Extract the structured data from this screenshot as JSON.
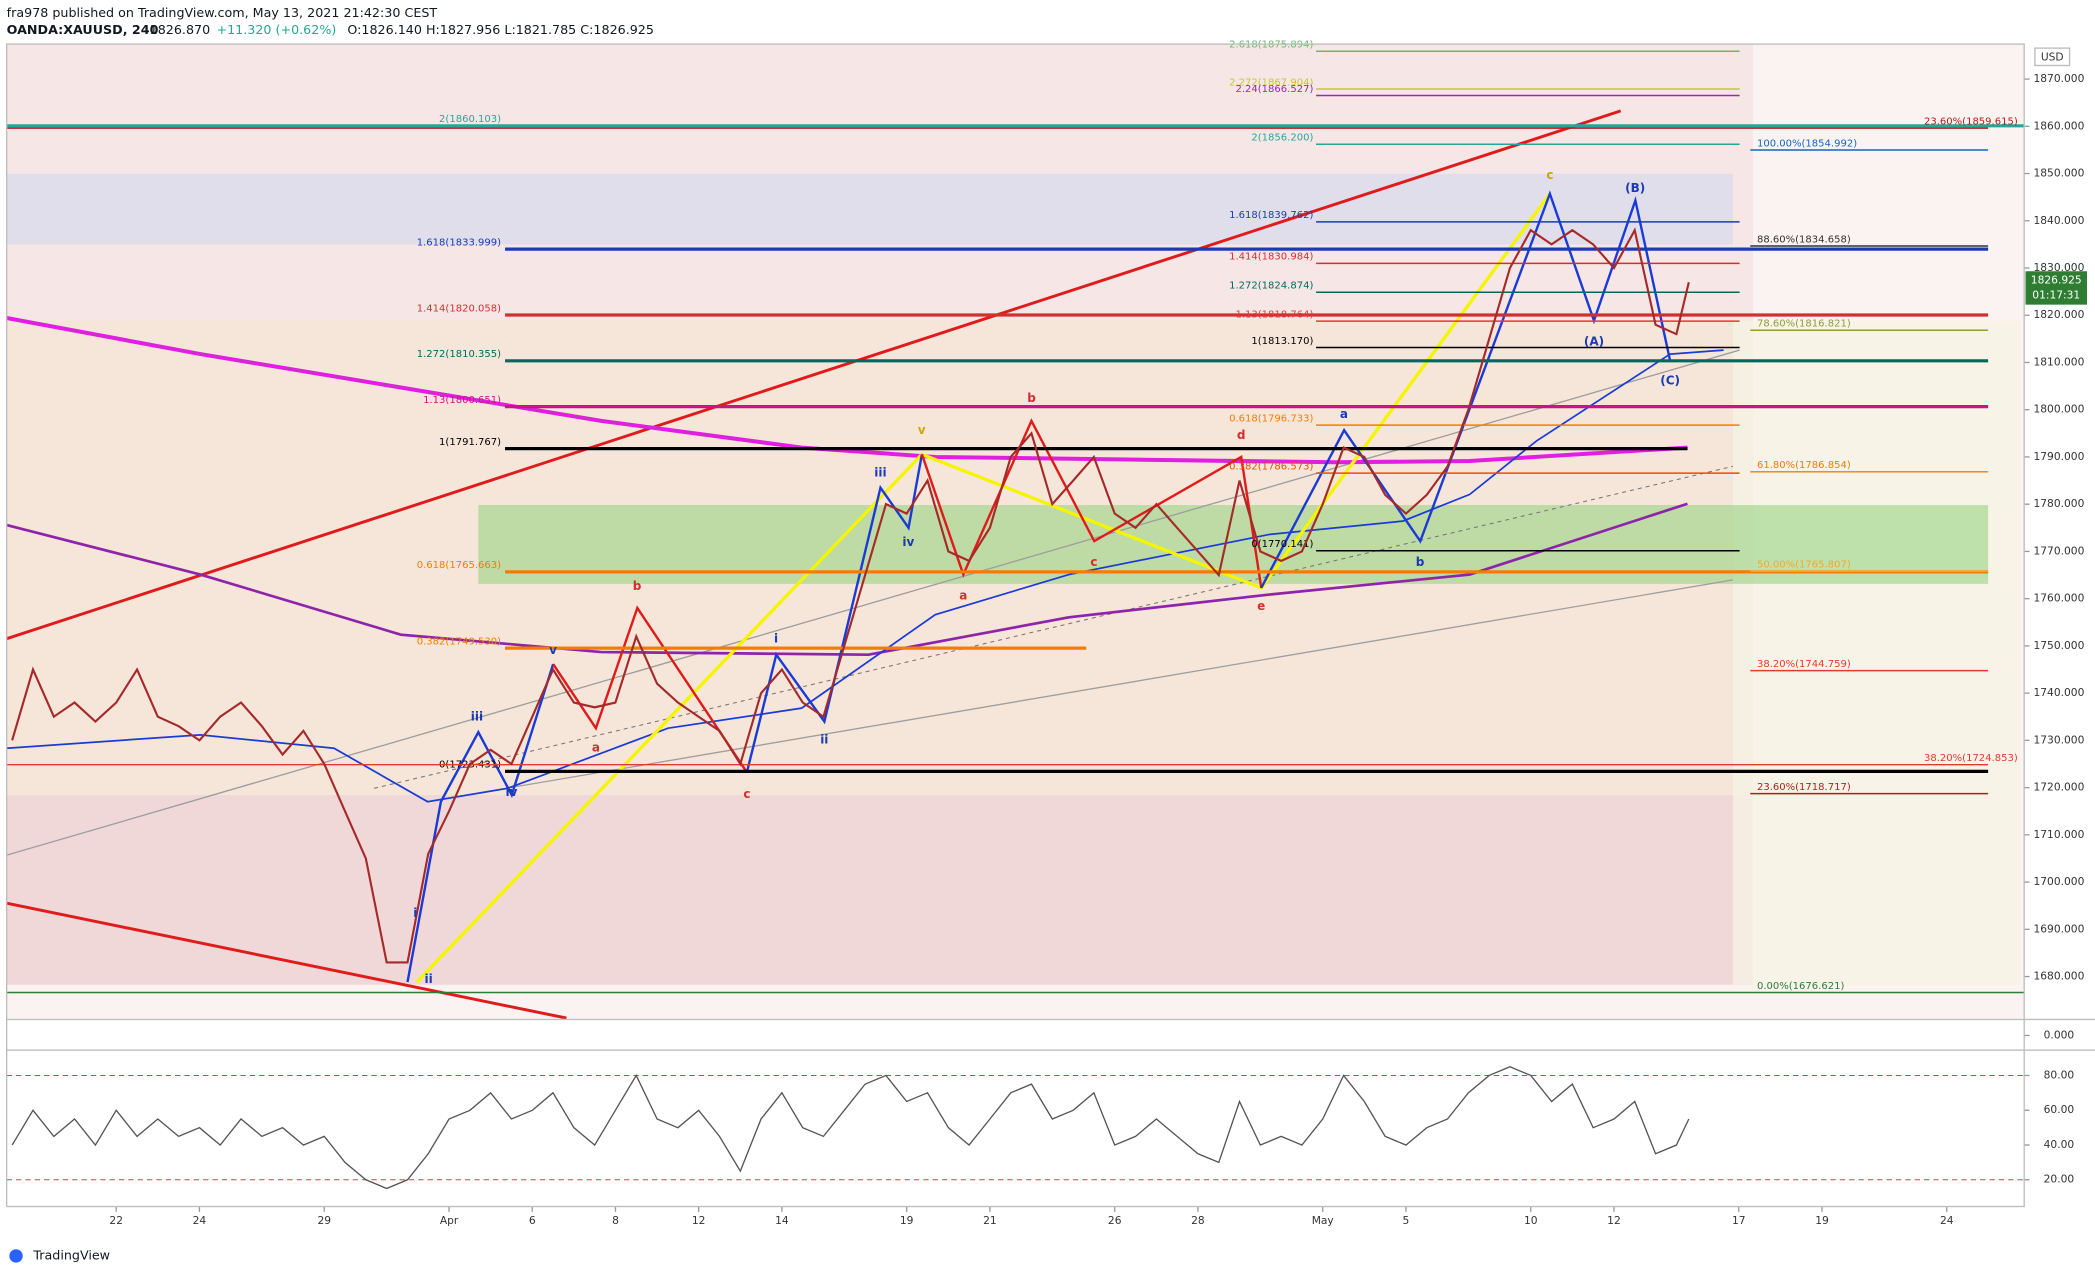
{
  "header": {
    "author_line": "fra978 published on TradingView.com, May 13, 2021 21:42:30 CEST",
    "symbol": "OANDA:XAUUSD, 240",
    "last": "1826.870",
    "change": "+11.320 (+0.62%)",
    "ohlc": "O:1826.140 H:1827.956 L:1821.785 C:1826.925"
  },
  "footer": {
    "brand": "TradingView"
  },
  "chart_data": [
    {
      "type": "line",
      "axis_unit": "USD",
      "last_price": "1826.925",
      "countdown": "01:17:31",
      "color": "#a52a2a",
      "xlim": [
        -2.633,
        45.86
      ],
      "xticks": [
        {
          "value": 0,
          "label": "22"
        },
        {
          "value": 2,
          "label": "24"
        },
        {
          "value": 5,
          "label": "29"
        },
        {
          "value": 8,
          "label": "Apr"
        },
        {
          "value": 10,
          "label": "6"
        },
        {
          "value": 12,
          "label": "8"
        },
        {
          "value": 14,
          "label": "12"
        },
        {
          "value": 16,
          "label": "14"
        },
        {
          "value": 19,
          "label": "19"
        },
        {
          "value": 21,
          "label": "21"
        },
        {
          "value": 24,
          "label": "26"
        },
        {
          "value": 26,
          "label": "28"
        },
        {
          "value": 29,
          "label": "May"
        },
        {
          "value": 31,
          "label": "5"
        },
        {
          "value": 34,
          "label": "10"
        },
        {
          "value": 36,
          "label": "12"
        },
        {
          "value": 39,
          "label": "17"
        },
        {
          "value": 41,
          "label": "19"
        },
        {
          "value": 44,
          "label": "24"
        }
      ],
      "ylim": [
        1671.2,
        1877.4
      ],
      "yticks": [
        {
          "value": 1680,
          "label": "1680.000"
        },
        {
          "value": 1690,
          "label": "1690.000"
        },
        {
          "value": 1700,
          "label": "1700.000"
        },
        {
          "value": 1710,
          "label": "1710.000"
        },
        {
          "value": 1720,
          "label": "1720.000"
        },
        {
          "value": 1730,
          "label": "1730.000"
        },
        {
          "value": 1740,
          "label": "1740.000"
        },
        {
          "value": 1750,
          "label": "1750.000"
        },
        {
          "value": 1760,
          "label": "1760.000"
        },
        {
          "value": 1770,
          "label": "1770.000"
        },
        {
          "value": 1780,
          "label": "1780.000"
        },
        {
          "value": 1790,
          "label": "1790.000"
        },
        {
          "value": 1800,
          "label": "1800.000"
        },
        {
          "value": 1810,
          "label": "1810.000"
        },
        {
          "value": 1820,
          "label": "1820.000"
        },
        {
          "value": 1830,
          "label": "1830.000"
        },
        {
          "value": 1840,
          "label": "1840.000"
        },
        {
          "value": 1850,
          "label": "1850.000"
        },
        {
          "value": 1860,
          "label": "1860.000"
        },
        {
          "value": 1870,
          "label": "1870.000"
        }
      ],
      "x": [
        -2.5,
        -2,
        -1.5,
        -1,
        -0.5,
        0,
        0.5,
        1,
        1.5,
        2,
        2.5,
        3,
        3.5,
        4,
        4.5,
        5,
        5.5,
        6,
        6.5,
        7,
        7.5,
        8,
        8.5,
        9,
        9.5,
        10,
        10.5,
        11,
        11.5,
        12,
        12.5,
        13,
        13.5,
        14,
        14.5,
        15,
        15.5,
        16,
        16.5,
        17,
        17.5,
        18,
        18.5,
        19,
        19.5,
        20,
        20.5,
        21,
        21.5,
        22,
        22.5,
        23,
        23.5,
        24,
        24.5,
        25,
        25.5,
        26,
        26.5,
        27,
        27.5,
        28,
        28.5,
        29,
        29.5,
        30,
        30.5,
        31,
        31.5,
        32,
        32.5,
        33,
        33.5,
        34,
        34.5,
        35,
        35.5,
        36,
        36.5,
        37,
        37.5,
        37.8
      ],
      "values": [
        1730,
        1745,
        1735,
        1738,
        1734,
        1738,
        1745,
        1735,
        1733,
        1730,
        1735,
        1738,
        1733,
        1727,
        1732,
        1725,
        1715,
        1705,
        1683,
        1683,
        1706,
        1715,
        1725,
        1728,
        1725,
        1735,
        1745,
        1738,
        1737,
        1738,
        1752,
        1742,
        1738,
        1735,
        1732,
        1725,
        1740,
        1745,
        1738,
        1735,
        1750,
        1765,
        1780,
        1778,
        1785,
        1770,
        1768,
        1775,
        1790,
        1795,
        1780,
        1785,
        1790,
        1778,
        1775,
        1780,
        1775,
        1770,
        1765,
        1785,
        1770,
        1768,
        1770,
        1780,
        1792,
        1790,
        1782,
        1778,
        1782,
        1788,
        1800,
        1815,
        1830,
        1838,
        1835,
        1838,
        1835,
        1830,
        1838,
        1818,
        1816,
        1827
      ],
      "levels": [
        {
          "label": "2(1860.103)",
          "value": 1860.103,
          "color": "#26a69a"
        },
        {
          "label": "1.618(1833.999)",
          "value": 1833.999,
          "color": "#1a3bb3"
        },
        {
          "label": "1.414(1820.058)",
          "value": 1820.058,
          "color": "#d32f2f"
        },
        {
          "label": "1.272(1810.355)",
          "value": 1810.355,
          "color": "#00695c"
        },
        {
          "label": "1.13(1800.651)",
          "value": 1800.651,
          "color": "#c71585"
        },
        {
          "label": "1(1791.767)",
          "value": 1791.767,
          "color": "#000000"
        },
        {
          "label": "0.618(1765.663)",
          "value": 1765.663,
          "color": "#f57c00"
        },
        {
          "label": "0.382(1749.530)",
          "value": 1749.53,
          "color": "#f57c00"
        },
        {
          "label": "0(1723.431)",
          "value": 1723.431,
          "color": "#000000"
        },
        {
          "label": "2.618(1875.894)",
          "value": 1875.894,
          "color": "#66bb6a"
        },
        {
          "label": "2.272(1867.904)",
          "value": 1867.904,
          "color": "#c0ca33"
        },
        {
          "label": "2.24(1866.527)",
          "value": 1866.527,
          "color": "#9c27b0"
        },
        {
          "label": "2(1856.200)",
          "value": 1856.2,
          "color": "#26a69a"
        },
        {
          "label": "1.618(1839.762)",
          "value": 1839.762,
          "color": "#1a3bb3"
        },
        {
          "label": "1.414(1830.984)",
          "value": 1830.984,
          "color": "#d32f2f"
        },
        {
          "label": "1.272(1824.874)",
          "value": 1824.874,
          "color": "#00695c"
        },
        {
          "label": "1.13(1818.764)",
          "value": 1818.764,
          "color": "#e53935"
        },
        {
          "label": "1(1813.170)",
          "value": 1813.17,
          "color": "#000000"
        },
        {
          "label": "0.618(1796.733)",
          "value": 1796.733,
          "color": "#f57c00"
        },
        {
          "label": "0.382(1786.573)",
          "value": 1786.573,
          "color": "#e65100"
        },
        {
          "label": "0(1770.141)",
          "value": 1770.141,
          "color": "#000000"
        },
        {
          "label": "23.60%(1859.615)",
          "value": 1859.615,
          "color": "#b71c1c"
        },
        {
          "label": "100.00%(1854.992)",
          "value": 1854.992,
          "color": "#1565c0"
        },
        {
          "label": "88.60%(1834.658)",
          "value": 1834.658,
          "color": "#333333"
        },
        {
          "label": "78.60%(1816.821)",
          "value": 1816.821,
          "color": "#8d9e3a"
        },
        {
          "label": "61.80%(1786.854)",
          "value": 1786.854,
          "color": "#f57c00"
        },
        {
          "label": "50.00%(1765.807)",
          "value": 1765.807,
          "color": "#f9a825"
        },
        {
          "label": "38.20%(1744.759)",
          "value": 1744.759,
          "color": "#e53935"
        },
        {
          "label": "38.20%(1724.853)",
          "value": 1724.853,
          "color": "#e53935"
        },
        {
          "label": "23.60%(1718.717)",
          "value": 1718.717,
          "color": "#b71c1c"
        },
        {
          "label": "0.00%(1676.621)",
          "value": 1676.621,
          "color": "#2e7d32"
        }
      ],
      "wave_labels": [
        {
          "text": "i",
          "x": 7.19,
          "y": 1693.3,
          "color": "#1a3bb3"
        },
        {
          "text": "ii",
          "x": 7.51,
          "y": 1679.4,
          "color": "#1a3bb3"
        },
        {
          "text": "iii",
          "x": 8.67,
          "y": 1734.9,
          "color": "#1a3bb3"
        },
        {
          "text": "iv",
          "x": 9.5,
          "y": 1719.0,
          "color": "#1a3bb3"
        },
        {
          "text": "v",
          "x": 10.5,
          "y": 1749.0,
          "color": "#1a3bb3"
        },
        {
          "text": "a",
          "x": 11.53,
          "y": 1728.4,
          "color": "#d32f2f"
        },
        {
          "text": "b",
          "x": 12.52,
          "y": 1762.6,
          "color": "#d32f2f"
        },
        {
          "text": "c",
          "x": 15.16,
          "y": 1718.5,
          "color": "#d32f2f"
        },
        {
          "text": "i",
          "x": 15.86,
          "y": 1751.5,
          "color": "#1a3bb3"
        },
        {
          "text": "ii",
          "x": 17.02,
          "y": 1730.1,
          "color": "#1a3bb3"
        },
        {
          "text": "iii",
          "x": 18.37,
          "y": 1786.6,
          "color": "#1a3bb3"
        },
        {
          "text": "iv",
          "x": 19.04,
          "y": 1771.9,
          "color": "#1a3bb3"
        },
        {
          "text": "v",
          "x": 19.36,
          "y": 1795.6,
          "color": "#c9a800"
        },
        {
          "text": "a",
          "x": 20.36,
          "y": 1760.6,
          "color": "#d32f2f"
        },
        {
          "text": "b",
          "x": 22.0,
          "y": 1802.4,
          "color": "#d32f2f"
        },
        {
          "text": "c",
          "x": 23.5,
          "y": 1767.7,
          "color": "#d32f2f"
        },
        {
          "text": "d",
          "x": 27.04,
          "y": 1794.5,
          "color": "#d32f2f"
        },
        {
          "text": "e",
          "x": 27.52,
          "y": 1758.3,
          "color": "#d32f2f"
        },
        {
          "text": "a",
          "x": 29.51,
          "y": 1799.0,
          "color": "#1a3bb3"
        },
        {
          "text": "b",
          "x": 31.34,
          "y": 1767.7,
          "color": "#1a3bb3"
        },
        {
          "text": "c",
          "x": 34.46,
          "y": 1849.6,
          "color": "#c9a800"
        },
        {
          "text": "(A)",
          "x": 35.52,
          "y": 1814.3,
          "color": "#1a3bb3"
        },
        {
          "text": "(B)",
          "x": 36.51,
          "y": 1846.8,
          "color": "#1a3bb3"
        },
        {
          "text": "(C)",
          "x": 37.35,
          "y": 1806.1,
          "color": "#1a3bb3"
        }
      ]
    },
    {
      "type": "line",
      "ylim": [
        -1,
        1
      ],
      "yticks": [
        {
          "value": 0,
          "label": "0.000"
        }
      ]
    },
    {
      "type": "line",
      "color": "#555555",
      "ylim": [
        6.9,
        93.8
      ],
      "yticks": [
        {
          "value": 20,
          "label": "20.00"
        },
        {
          "value": 40,
          "label": "40.00"
        },
        {
          "value": 60,
          "label": "60.00"
        },
        {
          "value": 80,
          "label": "80.00"
        }
      ],
      "hlines": [
        20,
        80
      ],
      "x": [
        -2.5,
        -2,
        -1.5,
        -1,
        -0.5,
        0,
        0.5,
        1,
        1.5,
        2,
        2.5,
        3,
        3.5,
        4,
        4.5,
        5,
        5.5,
        6,
        6.5,
        7,
        7.5,
        8,
        8.5,
        9,
        9.5,
        10,
        10.5,
        11,
        11.5,
        12,
        12.5,
        13,
        13.5,
        14,
        14.5,
        15,
        15.5,
        16,
        16.5,
        17,
        17.5,
        18,
        18.5,
        19,
        19.5,
        20,
        20.5,
        21,
        21.5,
        22,
        22.5,
        23,
        23.5,
        24,
        24.5,
        25,
        25.5,
        26,
        26.5,
        27,
        27.5,
        28,
        28.5,
        29,
        29.5,
        30,
        30.5,
        31,
        31.5,
        32,
        32.5,
        33,
        33.5,
        34,
        34.5,
        35,
        35.5,
        36,
        36.5,
        37,
        37.5,
        37.8
      ],
      "values": [
        40,
        60,
        45,
        55,
        40,
        60,
        45,
        55,
        45,
        50,
        40,
        55,
        45,
        50,
        40,
        45,
        30,
        20,
        15,
        20,
        35,
        55,
        60,
        70,
        55,
        60,
        70,
        50,
        40,
        60,
        80,
        55,
        50,
        60,
        45,
        25,
        55,
        70,
        50,
        45,
        60,
        75,
        80,
        65,
        70,
        50,
        40,
        55,
        70,
        75,
        55,
        60,
        70,
        40,
        45,
        55,
        45,
        35,
        30,
        65,
        40,
        45,
        40,
        55,
        80,
        65,
        45,
        40,
        50,
        55,
        70,
        80,
        85,
        80,
        65,
        75,
        50,
        55,
        65,
        35,
        40,
        55
      ]
    }
  ]
}
